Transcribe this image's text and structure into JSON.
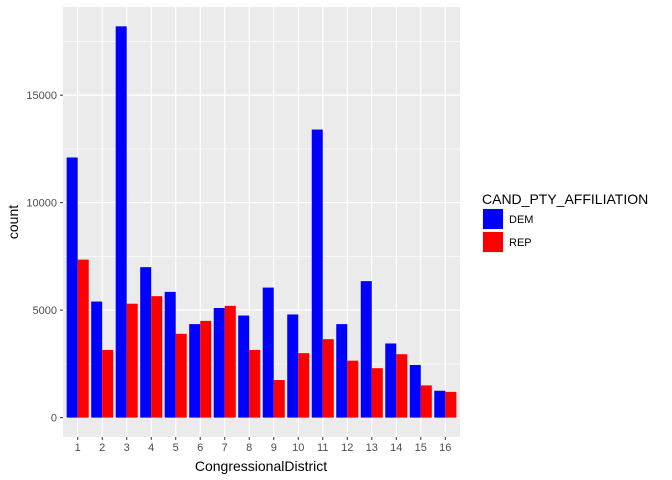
{
  "chart_data": {
    "type": "bar",
    "categories": [
      "1",
      "2",
      "3",
      "4",
      "5",
      "6",
      "7",
      "8",
      "9",
      "10",
      "11",
      "12",
      "13",
      "14",
      "15",
      "16"
    ],
    "series": [
      {
        "name": "DEM",
        "color": "#0000ff",
        "values": [
          12100,
          5400,
          18200,
          7000,
          5850,
          4350,
          5100,
          4750,
          6050,
          4800,
          13400,
          4350,
          6350,
          3450,
          2450,
          1250
        ]
      },
      {
        "name": "REP",
        "color": "#ff0000",
        "values": [
          7350,
          3150,
          5300,
          5650,
          3900,
          4500,
          5200,
          3150,
          1750,
          3000,
          3650,
          2650,
          2300,
          2950,
          1500,
          1200
        ]
      }
    ],
    "xlabel": "CongressionalDistrict",
    "ylabel": "count",
    "ylim": [
      -900,
      19100
    ],
    "yticks": [
      0,
      5000,
      10000,
      15000
    ],
    "ytick_labels": [
      "0",
      "5000",
      "10000",
      "15000"
    ],
    "legend_title": "CAND_PTY_AFFILIATION",
    "legend_position": "right",
    "panel_background": "#ebebeb",
    "grid": true,
    "grid_color": "#ffffff"
  }
}
